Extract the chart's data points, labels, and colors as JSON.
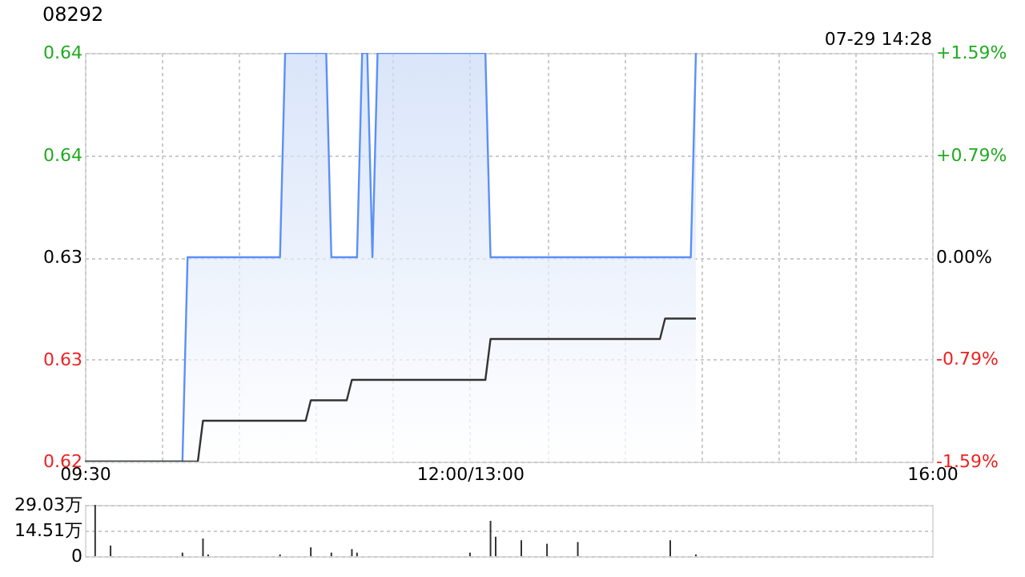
{
  "chart_data": [
    {
      "type": "area",
      "title": "08292",
      "annotations": [
        "07-29 14:28"
      ],
      "categories": [
        "09:30",
        null,
        null,
        null,
        null,
        null,
        null,
        null,
        null,
        null,
        null,
        null,
        null,
        null,
        null,
        null,
        null,
        null,
        null,
        null,
        null,
        null,
        null,
        null,
        null,
        null,
        null,
        null,
        null,
        null,
        null,
        null,
        null,
        null,
        null,
        null,
        null,
        null,
        null,
        null,
        null,
        null,
        null,
        null,
        null,
        null,
        null,
        null,
        null,
        null,
        null,
        null,
        null,
        null,
        null,
        null,
        null,
        null,
        null,
        null,
        null,
        null,
        null,
        null,
        null,
        null,
        null,
        null,
        null,
        null,
        null,
        null,
        null,
        null,
        null,
        "12:00/13:00",
        null,
        null,
        null,
        null,
        null,
        null,
        null,
        null,
        null,
        null,
        null,
        null,
        null,
        null,
        null,
        null,
        null,
        null,
        null,
        null,
        null,
        null,
        null,
        null,
        null,
        null,
        null,
        null,
        null,
        null,
        null,
        null,
        null,
        null,
        null,
        null,
        null,
        null,
        null,
        null,
        null,
        null,
        null,
        null,
        null,
        null,
        null,
        null,
        null,
        null,
        null,
        null,
        null,
        null,
        null,
        null,
        null,
        null,
        null,
        null,
        null,
        null,
        null,
        null,
        null,
        null,
        null,
        null,
        null,
        null,
        null,
        null,
        null,
        null,
        null,
        null,
        null,
        null,
        null,
        null,
        null,
        null,
        null,
        null,
        null,
        null,
        null,
        null,
        null,
        "16:00"
      ],
      "ylim": [
        0.62,
        0.64
      ],
      "yticks": [
        0.62,
        {
          "value": 0.625,
          "label": "0.63"
        },
        0.63,
        {
          "value": 0.635,
          "label": "0.64"
        },
        0.64
      ],
      "y2lim": [
        -1.59,
        1.59
      ],
      "y2ticks": [
        {
          "value": -1.59,
          "label": "-1.59%"
        },
        {
          "value": -0.79,
          "label": "-0.79%"
        },
        {
          "value": 0,
          "label": "0.00%"
        },
        {
          "value": 0.79,
          "label": "+0.79%"
        },
        {
          "value": 1.59,
          "label": "+1.59%"
        }
      ],
      "grid": true,
      "series": [
        {
          "type": "area",
          "color": "#5b8ff9",
          "values": [
            0.62,
            0.62,
            0.62,
            0.62,
            0.62,
            0.62,
            0.62,
            0.62,
            0.62,
            0.62,
            0.62,
            0.62,
            0.62,
            0.62,
            0.62,
            0.62,
            0.62,
            0.62,
            0.62,
            0.62,
            0.63,
            0.63,
            0.63,
            0.63,
            0.63,
            0.63,
            0.63,
            0.63,
            0.63,
            0.63,
            0.63,
            0.63,
            0.63,
            0.63,
            0.63,
            0.63,
            0.63,
            0.63,
            0.63,
            0.64,
            0.64,
            0.64,
            0.64,
            0.64,
            0.64,
            0.64,
            0.64,
            0.64,
            0.63,
            0.63,
            0.63,
            0.63,
            0.63,
            0.63,
            0.64,
            0.64,
            0.63,
            0.64,
            0.64,
            0.64,
            0.64,
            0.64,
            0.64,
            0.64,
            0.64,
            0.64,
            0.64,
            0.64,
            0.64,
            0.64,
            0.64,
            0.64,
            0.64,
            0.64,
            0.64,
            0.64,
            0.64,
            0.64,
            0.64,
            0.63,
            0.63,
            0.63,
            0.63,
            0.63,
            0.63,
            0.63,
            0.63,
            0.63,
            0.63,
            0.63,
            0.63,
            0.63,
            0.63,
            0.63,
            0.63,
            0.63,
            0.63,
            0.63,
            0.63,
            0.63,
            0.63,
            0.63,
            0.63,
            0.63,
            0.63,
            0.63,
            0.63,
            0.63,
            0.63,
            0.63,
            0.63,
            0.63,
            0.63,
            0.63,
            0.63,
            0.63,
            0.63,
            0.63,
            0.63,
            0.64,
            null,
            null,
            null,
            null,
            null,
            null,
            null,
            null,
            null,
            null,
            null,
            null,
            null,
            null,
            null,
            null,
            null,
            null,
            null,
            null,
            null,
            null,
            null,
            null,
            null,
            null,
            null,
            null,
            null,
            null,
            null,
            null,
            null,
            null,
            null,
            null,
            null,
            null,
            null,
            null,
            null,
            null,
            null,
            null,
            null,
            null
          ]
        },
        {
          "type": "line",
          "color": "#333333",
          "values": [
            0.62,
            0.62,
            0.62,
            0.62,
            0.62,
            0.62,
            0.62,
            0.62,
            0.62,
            0.62,
            0.62,
            0.62,
            0.62,
            0.62,
            0.62,
            0.62,
            0.62,
            0.62,
            0.62,
            0.62,
            0.62,
            0.62,
            0.62,
            0.622,
            0.622,
            0.622,
            0.622,
            0.622,
            0.622,
            0.622,
            0.622,
            0.622,
            0.622,
            0.622,
            0.622,
            0.622,
            0.622,
            0.622,
            0.622,
            0.622,
            0.622,
            0.622,
            0.622,
            0.622,
            0.623,
            0.623,
            0.623,
            0.623,
            0.623,
            0.623,
            0.623,
            0.623,
            0.624,
            0.624,
            0.624,
            0.624,
            0.624,
            0.624,
            0.624,
            0.624,
            0.624,
            0.624,
            0.624,
            0.624,
            0.624,
            0.624,
            0.624,
            0.624,
            0.624,
            0.624,
            0.624,
            0.624,
            0.624,
            0.624,
            0.624,
            0.624,
            0.624,
            0.624,
            0.624,
            0.626,
            0.626,
            0.626,
            0.626,
            0.626,
            0.626,
            0.626,
            0.626,
            0.626,
            0.626,
            0.626,
            0.626,
            0.626,
            0.626,
            0.626,
            0.626,
            0.626,
            0.626,
            0.626,
            0.626,
            0.626,
            0.626,
            0.626,
            0.626,
            0.626,
            0.626,
            0.626,
            0.626,
            0.626,
            0.626,
            0.626,
            0.626,
            0.626,
            0.626,
            0.627,
            0.627,
            0.627,
            0.627,
            0.627,
            0.627,
            0.627,
            null,
            null,
            null,
            null,
            null,
            null,
            null,
            null,
            null,
            null,
            null,
            null,
            null,
            null,
            null,
            null,
            null,
            null,
            null,
            null,
            null,
            null,
            null,
            null,
            null,
            null,
            null,
            null,
            null,
            null,
            null,
            null,
            null,
            null,
            null,
            null,
            null,
            null,
            null,
            null,
            null,
            null,
            null,
            null,
            null,
            null
          ]
        }
      ]
    },
    {
      "type": "bar",
      "tick_labels": "y",
      "categories": [
        null,
        null,
        null,
        null,
        null,
        null,
        null,
        null,
        null,
        null,
        null,
        null,
        null,
        null,
        null,
        null,
        null,
        null,
        null,
        null,
        null,
        null,
        null,
        null,
        null,
        null,
        null,
        null,
        null,
        null,
        null,
        null,
        null,
        null,
        null,
        null,
        null,
        null,
        null,
        null,
        null,
        null,
        null,
        null,
        null,
        null,
        null,
        null,
        null,
        null,
        null,
        null,
        null,
        null,
        null,
        null,
        null,
        null,
        null,
        null,
        null,
        null,
        null,
        null,
        null,
        null,
        null,
        null,
        null,
        null,
        null,
        null,
        null,
        null,
        null,
        null,
        null,
        null,
        null,
        null,
        null,
        null,
        null,
        null,
        null,
        null,
        null,
        null,
        null,
        null,
        null,
        null,
        null,
        null,
        null,
        null,
        null,
        null,
        null,
        null,
        null,
        null,
        null,
        null,
        null,
        null,
        null,
        null,
        null,
        null,
        null,
        null,
        null,
        null,
        null,
        null,
        null,
        null,
        null,
        null,
        null,
        null,
        null,
        null,
        null,
        null,
        null,
        null,
        null,
        null,
        null,
        null,
        null,
        null,
        null,
        null,
        null,
        null,
        null,
        null,
        null,
        null,
        null,
        null,
        null,
        null,
        null,
        null,
        null,
        null,
        null,
        null,
        null,
        null,
        null,
        null,
        null,
        null,
        null,
        null,
        null,
        null,
        null,
        null,
        null,
        null
      ],
      "ylim": [
        0,
        29.03
      ],
      "yticks": [
        0,
        {
          "value": 14.51,
          "label": "14.51万"
        },
        {
          "value": 29.03,
          "label": "29.03万"
        }
      ],
      "grid": "y",
      "series": [
        {
          "color": "#333333",
          "values": [
            null,
            null,
            29,
            null,
            null,
            6,
            null,
            null,
            null,
            null,
            null,
            null,
            null,
            null,
            null,
            null,
            null,
            null,
            null,
            2,
            null,
            null,
            null,
            10,
            1,
            null,
            null,
            null,
            null,
            null,
            null,
            null,
            null,
            null,
            null,
            null,
            null,
            null,
            1,
            null,
            null,
            null,
            null,
            null,
            5,
            null,
            null,
            null,
            2,
            null,
            null,
            null,
            4,
            2,
            null,
            null,
            null,
            null,
            null,
            null,
            null,
            null,
            null,
            null,
            null,
            null,
            null,
            null,
            null,
            null,
            null,
            null,
            null,
            null,
            null,
            2,
            null,
            null,
            null,
            20,
            11,
            null,
            null,
            null,
            null,
            9,
            null,
            null,
            null,
            null,
            7,
            null,
            null,
            null,
            null,
            null,
            8,
            null,
            null,
            null,
            null,
            null,
            null,
            null,
            null,
            null,
            null,
            null,
            null,
            null,
            null,
            null,
            null,
            null,
            9,
            null,
            null,
            null,
            null,
            1,
            null,
            null,
            null,
            null,
            null,
            null,
            null,
            null,
            null,
            null,
            null,
            null,
            null,
            null,
            null,
            null,
            null,
            null,
            null,
            null,
            null,
            null,
            null,
            null,
            null,
            null,
            null,
            null,
            null,
            null,
            null,
            null,
            null,
            null,
            null,
            null,
            null,
            null,
            null,
            null,
            null,
            null,
            null,
            null,
            null,
            null
          ]
        }
      ]
    }
  ]
}
